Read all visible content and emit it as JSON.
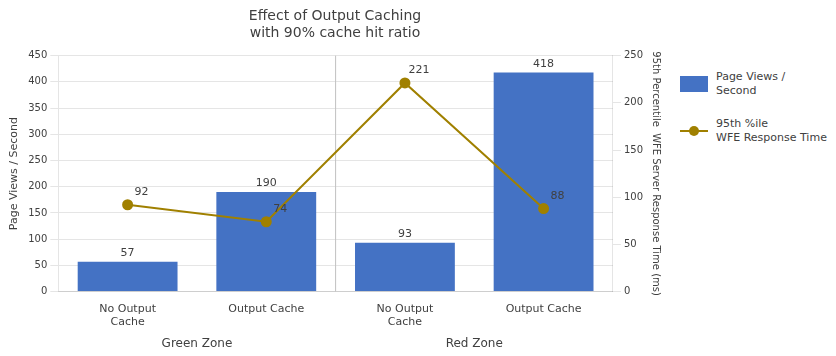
{
  "chart_data": {
    "type": "bar",
    "title": "Effect of Output Caching\nwith 90% cache hit ratio",
    "categories": [
      "No Output\nCache",
      "Output Cache",
      "No Output\nCache",
      "Output Cache"
    ],
    "group_labels": [
      "Green Zone",
      "Red Zone"
    ],
    "series": [
      {
        "name": "Page Views /\nSecond",
        "type": "bar",
        "color": "#4472C4",
        "values": [
          57,
          190,
          93,
          418
        ]
      },
      {
        "name": "95th %ile\nWFE Response Time",
        "type": "line",
        "color": "#A08000",
        "marker": "circle",
        "axis": "y2",
        "values": [
          92,
          74,
          221,
          88
        ]
      }
    ],
    "ylabel": "Page Views / Second",
    "y2label": "95th Percentile  WFE Server Response Time (ms)",
    "ylim": [
      0,
      450
    ],
    "yticks": [
      0,
      50,
      100,
      150,
      200,
      250,
      300,
      350,
      400,
      450
    ],
    "y2lim": [
      0,
      250
    ],
    "y2ticks": [
      0,
      50,
      100,
      150,
      200,
      250
    ],
    "grid": true,
    "legend": "right",
    "data_labels": true
  }
}
